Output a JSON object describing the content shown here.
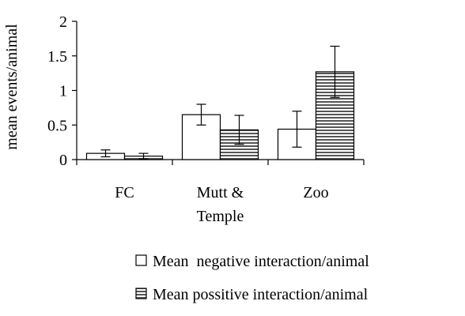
{
  "chart_data": {
    "type": "bar",
    "categories": [
      [
        "FC"
      ],
      [
        "Mutt &",
        "Temple"
      ],
      [
        "Zoo"
      ]
    ],
    "series": [
      {
        "name": "Mean  negative interaction/animal",
        "pattern": "plain",
        "fill": "#ffffff",
        "values": [
          0.09,
          0.65,
          0.44
        ],
        "error": [
          0.05,
          0.15,
          0.26
        ]
      },
      {
        "name": "Mean possitive interaction/animal",
        "pattern": "horizontal-stripes",
        "fill": "#ffffff",
        "values": [
          0.05,
          0.43,
          1.27
        ],
        "error": [
          0.04,
          0.21,
          0.37
        ]
      }
    ],
    "ylabel": "mean events/animal",
    "ylim": [
      0,
      2
    ],
    "yticks": [
      "0",
      "0.5",
      "1",
      "1.5",
      "2"
    ],
    "grid": false,
    "legend_position": "bottom"
  }
}
